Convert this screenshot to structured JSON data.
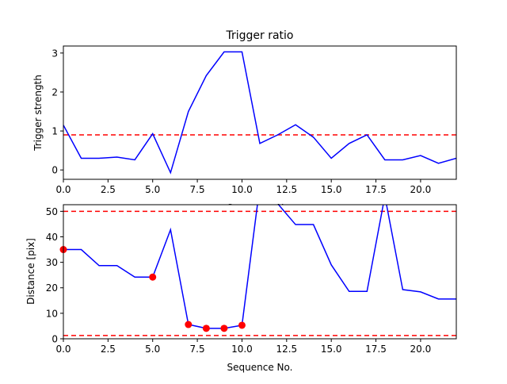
{
  "chart_data": [
    {
      "type": "line",
      "title": "Trigger ratio",
      "xlabel": "Sequence No.",
      "ylabel": "Trigger strength",
      "xlim": [
        0,
        22
      ],
      "ylim": [
        -0.24,
        3.18
      ],
      "xticks": [
        "0.0",
        "2.5",
        "5.0",
        "7.5",
        "10.0",
        "12.5",
        "15.0",
        "17.5",
        "20.0"
      ],
      "xtick_values": [
        0,
        2.5,
        5,
        7.5,
        10,
        12.5,
        15,
        17.5,
        20
      ],
      "yticks": [
        "0",
        "1",
        "2",
        "3"
      ],
      "ytick_values": [
        0,
        1,
        2,
        3
      ],
      "x": [
        0,
        1,
        2,
        3,
        4,
        5,
        6,
        7,
        8,
        9,
        10,
        11,
        12,
        13,
        14,
        15,
        16,
        17,
        18,
        19,
        20,
        21,
        22
      ],
      "series": [
        {
          "name": "trigger strength",
          "color": "#0000ff",
          "values": [
            1.15,
            0.3,
            0.3,
            0.33,
            0.26,
            0.93,
            -0.07,
            1.5,
            2.42,
            3.03,
            3.03,
            0.68,
            0.9,
            1.16,
            0.84,
            0.3,
            0.68,
            0.9,
            0.26,
            0.26,
            0.37,
            0.17,
            0.3
          ]
        }
      ],
      "hlines": [
        {
          "y": 0.9,
          "color": "#ff0000",
          "style": "dashed"
        }
      ]
    },
    {
      "type": "line",
      "title": "",
      "xlabel": "Sequence No.",
      "ylabel": "Distance [pix]",
      "xlim": [
        0,
        22
      ],
      "ylim": [
        0,
        52.6
      ],
      "xticks": [
        "0.0",
        "2.5",
        "5.0",
        "7.5",
        "10.0",
        "12.5",
        "15.0",
        "17.5",
        "20.0"
      ],
      "xtick_values": [
        0,
        2.5,
        5,
        7.5,
        10,
        12.5,
        15,
        17.5,
        20
      ],
      "yticks": [
        "0",
        "10",
        "20",
        "30",
        "40",
        "50"
      ],
      "ytick_values": [
        0,
        10,
        20,
        30,
        40,
        50
      ],
      "x": [
        0,
        1,
        2,
        3,
        4,
        5,
        6,
        7,
        8,
        9,
        10,
        11,
        12,
        13,
        14,
        15,
        16,
        17,
        18,
        19,
        20,
        21,
        22
      ],
      "series": [
        {
          "name": "distance",
          "color": "#0000ff",
          "values": [
            35,
            35,
            28.7,
            28.7,
            24.2,
            24.2,
            42.8,
            5.6,
            4.1,
            4.1,
            5.3,
            60,
            53,
            44.8,
            44.8,
            29,
            18.6,
            18.6,
            56,
            19.3,
            18.4,
            15.6,
            15.6
          ]
        }
      ],
      "markers": {
        "color": "#ff0000",
        "x": [
          0,
          5,
          7,
          8,
          9,
          10
        ],
        "y": [
          35,
          24.2,
          5.6,
          4.1,
          4.1,
          5.3
        ]
      },
      "hlines": [
        {
          "y": 50,
          "color": "#ff0000",
          "style": "dashed"
        },
        {
          "y": 1.3,
          "color": "#ff0000",
          "style": "dashed"
        }
      ]
    }
  ]
}
